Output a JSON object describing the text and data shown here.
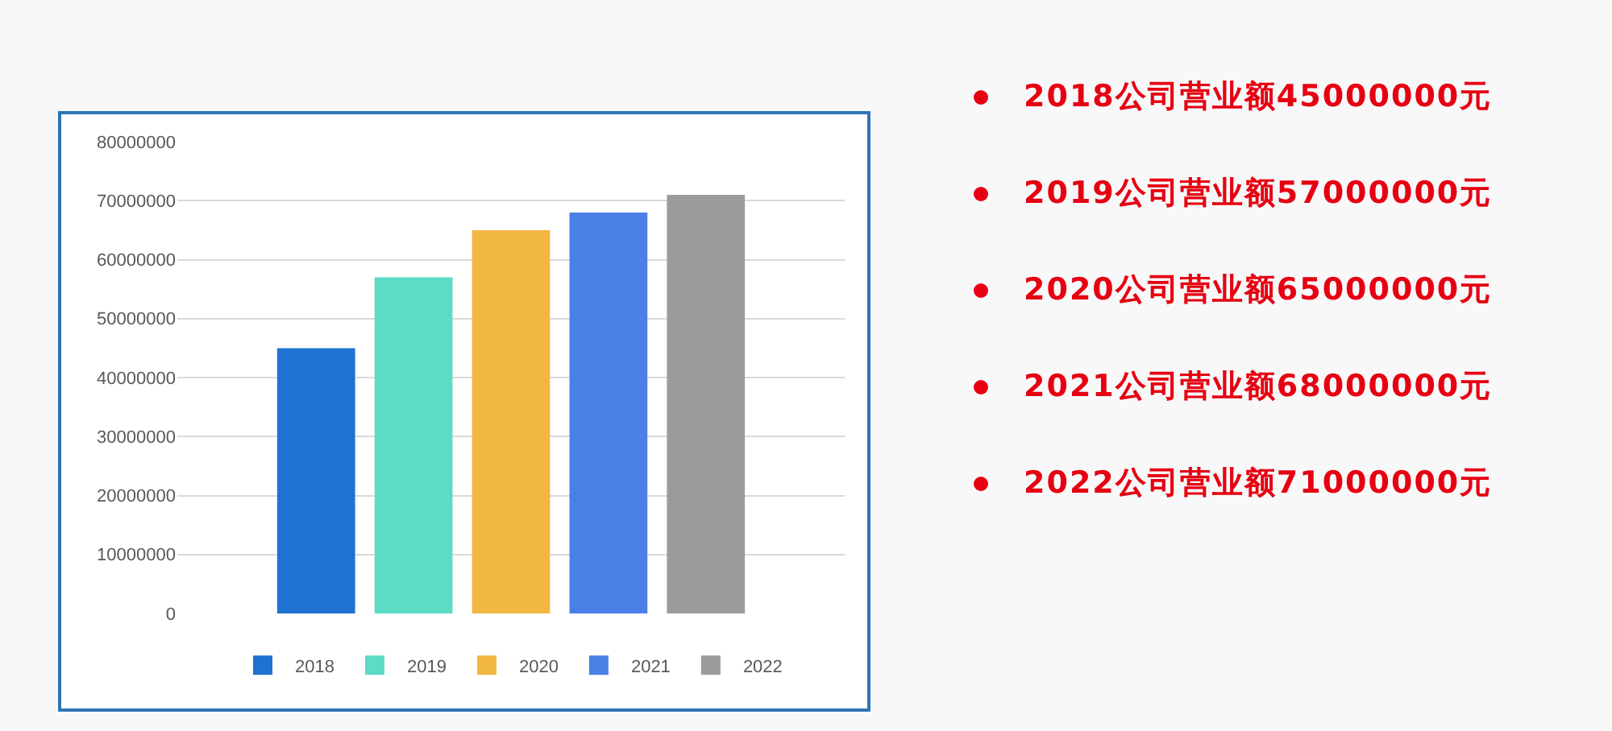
{
  "chart_data": {
    "type": "bar",
    "categories": [
      null
    ],
    "series": [
      {
        "name": "2018",
        "color": "#1f72d1",
        "values": [
          45000000
        ]
      },
      {
        "name": "2019",
        "color": "#5cdbc5",
        "values": [
          57000000
        ]
      },
      {
        "name": "2020",
        "color": "#f2b642",
        "values": [
          65000000
        ]
      },
      {
        "name": "2021",
        "color": "#4a7fe6",
        "values": [
          68000000
        ]
      },
      {
        "name": "2022",
        "color": "#9b9b9b",
        "values": [
          71000000
        ]
      }
    ],
    "ylim": [
      0,
      80000000
    ],
    "yticks": [
      0,
      10000000,
      20000000,
      30000000,
      40000000,
      50000000,
      60000000,
      70000000,
      80000000
    ],
    "grid": "y",
    "legend": "bottom",
    "annotations": [
      "2018公司营业额45000000元",
      "2019公司营业额57000000元",
      "2020公司营业额65000000元",
      "2021公司营业额68000000元",
      "2022公司营业额71000000元"
    ]
  }
}
